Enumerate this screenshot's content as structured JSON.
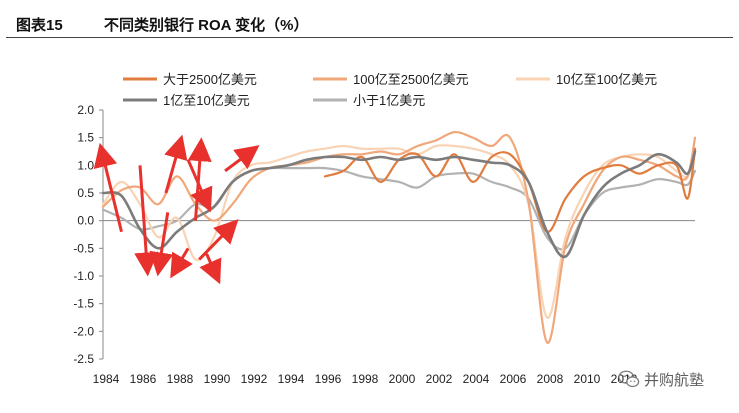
{
  "header": {
    "figure_number": "图表15",
    "figure_title": "不同类别银行 ROA 变化（%）"
  },
  "watermark": {
    "text": "并购航塾"
  },
  "chart_data": {
    "type": "line",
    "ylim": [
      -2.5,
      2.0
    ],
    "yticks": [
      "2.0",
      "1.5",
      "1.0",
      "0.5",
      "0.0",
      "-0.5",
      "-1.0",
      "-1.5",
      "-2.0",
      "-2.5"
    ],
    "xlim": [
      1984,
      2016
    ],
    "xticks": [
      "1984",
      "1986",
      "1988",
      "1990",
      "1992",
      "1994",
      "1996",
      "1998",
      "2000",
      "2002",
      "2004",
      "2006",
      "2008",
      "2010",
      "2012"
    ],
    "grid": false,
    "legend_position": "top",
    "series": [
      {
        "name": "大于2500亿美元",
        "color": "#e07c3e",
        "width": 2.2,
        "x": [
          1996,
          1997,
          1998,
          1999,
          2000,
          2001,
          2002,
          2003,
          2004,
          2005,
          2006,
          2007,
          2008,
          2009,
          2010,
          2011,
          2012,
          2013,
          2014,
          2015,
          2015.6,
          2016
        ],
        "y": [
          0.8,
          0.9,
          1.15,
          0.7,
          1.1,
          1.2,
          0.8,
          1.2,
          0.7,
          1.15,
          1.2,
          0.7,
          -0.2,
          0.4,
          0.8,
          0.95,
          1.0,
          0.85,
          1.0,
          1.0,
          0.4,
          1.3
        ]
      },
      {
        "name": "100亿至2500亿美元",
        "color": "#f0a77a",
        "width": 2.2,
        "x": [
          1984,
          1985,
          1986,
          1987,
          1988,
          1989,
          1990,
          1991,
          1992,
          1993,
          1994,
          1995,
          1996,
          1997,
          1998,
          1999,
          2000,
          2001,
          2002,
          2003,
          2004,
          2005,
          2006,
          2007,
          2008,
          2009,
          2010,
          2011,
          2012,
          2013,
          2014,
          2015,
          2015.6,
          2016
        ],
        "y": [
          0.25,
          0.55,
          0.6,
          0.3,
          0.8,
          0.3,
          0.0,
          0.3,
          0.75,
          0.95,
          1.0,
          1.05,
          1.15,
          1.2,
          1.2,
          1.25,
          1.2,
          1.35,
          1.45,
          1.6,
          1.5,
          1.35,
          1.5,
          0.35,
          -2.2,
          -0.45,
          0.3,
          0.9,
          1.15,
          1.1,
          1.0,
          0.8,
          0.8,
          1.5
        ]
      },
      {
        "name": "10亿至100亿美元",
        "color": "#f8d3b4",
        "width": 2.2,
        "x": [
          1984,
          1985,
          1986,
          1987,
          1988,
          1989,
          1990,
          1991,
          1992,
          1993,
          1994,
          1995,
          1996,
          1997,
          1998,
          1999,
          2000,
          2001,
          2002,
          2003,
          2004,
          2005,
          2006,
          2007,
          2008,
          2009,
          2010,
          2011,
          2012,
          2013,
          2014,
          2015,
          2015.6,
          2016
        ],
        "y": [
          0.3,
          0.7,
          0.3,
          -0.3,
          0.05,
          -0.7,
          -0.3,
          0.7,
          1.0,
          1.05,
          1.15,
          1.25,
          1.3,
          1.35,
          1.3,
          1.3,
          1.3,
          1.2,
          1.35,
          1.35,
          1.3,
          1.2,
          1.0,
          0.3,
          -1.75,
          -0.3,
          0.5,
          1.0,
          1.15,
          1.2,
          1.15,
          0.9,
          0.8,
          1.2
        ]
      },
      {
        "name": "1亿至10亿美元",
        "color": "#7b7b7b",
        "width": 2.6,
        "x": [
          1984,
          1985,
          1986,
          1987,
          1988,
          1989,
          1990,
          1991,
          1992,
          1993,
          1994,
          1995,
          1996,
          1997,
          1998,
          1999,
          2000,
          2001,
          2002,
          2003,
          2004,
          2005,
          2006,
          2007,
          2008,
          2009,
          2010,
          2011,
          2012,
          2013,
          2014,
          2015,
          2015.6,
          2016
        ],
        "y": [
          0.5,
          0.45,
          -0.15,
          -0.5,
          -0.2,
          0.05,
          0.25,
          0.7,
          0.9,
          0.95,
          1.0,
          1.1,
          1.15,
          1.15,
          1.1,
          1.15,
          1.1,
          1.15,
          1.1,
          1.15,
          1.1,
          1.05,
          1.0,
          0.7,
          -0.2,
          -0.65,
          0.1,
          0.6,
          0.85,
          1.0,
          1.2,
          1.05,
          0.85,
          1.25
        ]
      },
      {
        "name": "小于1亿美元",
        "color": "#b2b2b2",
        "width": 2.2,
        "x": [
          1984,
          1985,
          1986,
          1987,
          1988,
          1989,
          1990,
          1991,
          1992,
          1993,
          1994,
          1995,
          1996,
          1997,
          1998,
          1999,
          2000,
          2001,
          2002,
          2003,
          2004,
          2005,
          2006,
          2007,
          2008,
          2009,
          2010,
          2011,
          2012,
          2013,
          2014,
          2015,
          2015.6,
          2016
        ],
        "y": [
          0.2,
          0.05,
          -0.15,
          -0.1,
          0.0,
          0.3,
          0.25,
          0.7,
          0.9,
          0.95,
          0.95,
          0.95,
          0.95,
          0.9,
          0.8,
          0.75,
          0.7,
          0.6,
          0.8,
          0.85,
          0.85,
          0.7,
          0.6,
          0.4,
          -0.3,
          -0.5,
          0.1,
          0.5,
          0.6,
          0.65,
          0.75,
          0.7,
          0.65,
          0.9
        ]
      }
    ],
    "annotations": {
      "type": "arrows",
      "color": "#e8302c",
      "arrows": [
        {
          "from": [
            1985.0,
            -0.2
          ],
          "to": [
            1983.9,
            1.3
          ]
        },
        {
          "from": [
            1986.0,
            1.0
          ],
          "to": [
            1986.4,
            -0.9
          ]
        },
        {
          "from": [
            1987.4,
            0.5
          ],
          "to": [
            1988.2,
            1.45
          ]
        },
        {
          "from": [
            1987.5,
            0.15
          ],
          "to": [
            1987.0,
            -0.9
          ]
        },
        {
          "from": [
            1988.6,
            1.1
          ],
          "to": [
            1989.7,
            0.25
          ]
        },
        {
          "from": [
            1989.0,
            0.0
          ],
          "to": [
            1989.3,
            1.4
          ]
        },
        {
          "from": [
            1990.6,
            0.9
          ],
          "to": [
            1992.2,
            1.3
          ]
        },
        {
          "from": [
            1989.2,
            -0.7
          ],
          "to": [
            1991.1,
            -0.05
          ]
        },
        {
          "from": [
            1988.6,
            -0.5
          ],
          "to": [
            1987.8,
            -0.95
          ]
        },
        {
          "from": [
            1989.6,
            -0.6
          ],
          "to": [
            1990.2,
            -1.05
          ]
        }
      ]
    }
  }
}
